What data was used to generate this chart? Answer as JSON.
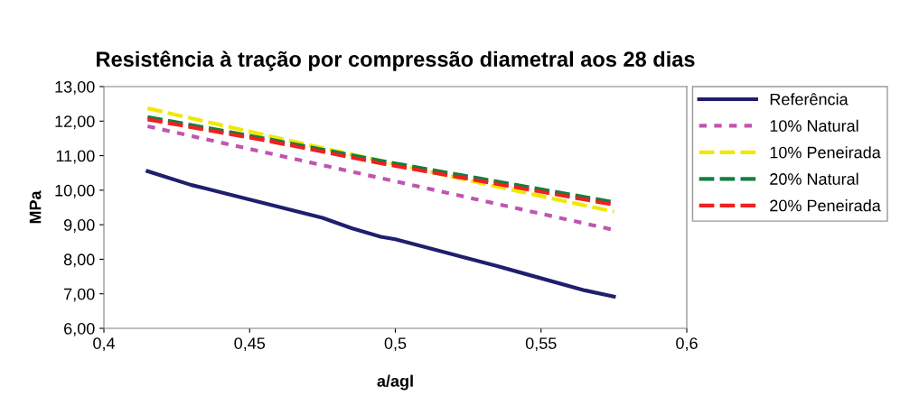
{
  "chart_data": {
    "type": "line",
    "title": "Resistência à tração por compressão diametral aos 28 dias",
    "xlabel": "a/agl",
    "ylabel": "MPa",
    "xlim": [
      0.4,
      0.6
    ],
    "xticks": [
      {
        "value": 0.4,
        "label": "0,4"
      },
      {
        "value": 0.45,
        "label": "0,45"
      },
      {
        "value": 0.5,
        "label": "0,5"
      },
      {
        "value": 0.55,
        "label": "0,55"
      },
      {
        "value": 0.6,
        "label": "0,6"
      }
    ],
    "ylim": [
      6,
      13
    ],
    "yticks": [
      {
        "value": 6,
        "label": "6,00"
      },
      {
        "value": 7,
        "label": "7,00"
      },
      {
        "value": 8,
        "label": "8,00"
      },
      {
        "value": 9,
        "label": "9,00"
      },
      {
        "value": 10,
        "label": "10,00"
      },
      {
        "value": 11,
        "label": "11,00"
      },
      {
        "value": 12,
        "label": "12,00"
      },
      {
        "value": 13,
        "label": "13,00"
      }
    ],
    "grid": false,
    "legend": "right",
    "marker": "none",
    "series": [
      {
        "name": "Referência",
        "color": "#1f1f6e",
        "line_style": "solid",
        "x": [
          0.415,
          0.43,
          0.435,
          0.475,
          0.485,
          0.495,
          0.5,
          0.535,
          0.544,
          0.565,
          0.575
        ],
        "values": [
          10.55,
          10.15,
          10.05,
          9.2,
          8.9,
          8.65,
          8.58,
          7.8,
          7.59,
          7.1,
          6.92
        ]
      },
      {
        "name": "10% Natural",
        "color": "#c055b0",
        "line_style": "dotted",
        "x": [
          0.415,
          0.455,
          0.495,
          0.535,
          0.575
        ],
        "values": [
          11.85,
          11.1,
          10.35,
          9.6,
          8.85
        ]
      },
      {
        "name": "10% Peneirada",
        "color": "#f0e800",
        "line_style": "dashed",
        "x": [
          0.415,
          0.455,
          0.495,
          0.535,
          0.575
        ],
        "values": [
          12.37,
          11.6,
          10.85,
          10.1,
          9.38
        ]
      },
      {
        "name": "20% Natural",
        "color": "#108040",
        "line_style": "dashed",
        "x": [
          0.415,
          0.455,
          0.495,
          0.535,
          0.575
        ],
        "values": [
          12.12,
          11.5,
          10.85,
          10.25,
          9.65
        ]
      },
      {
        "name": "20% Peneirada",
        "color": "#ee2020",
        "line_style": "dashed",
        "x": [
          0.415,
          0.455,
          0.495,
          0.535,
          0.575
        ],
        "values": [
          12.05,
          11.45,
          10.78,
          10.18,
          9.58
        ]
      }
    ]
  }
}
